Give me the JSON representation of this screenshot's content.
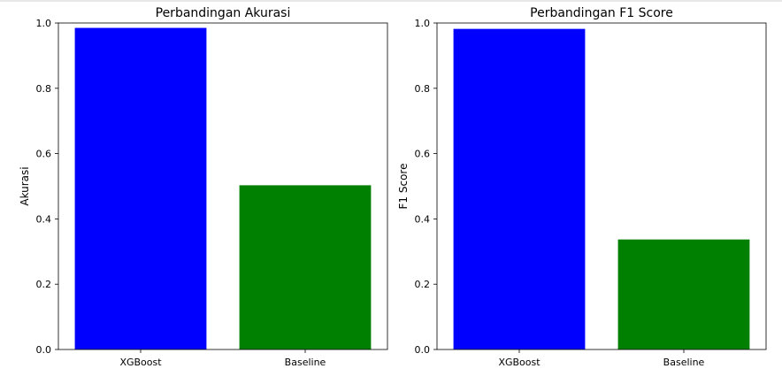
{
  "chart_data": [
    {
      "type": "bar",
      "title": "Perbandingan Akurasi",
      "xlabel": "",
      "ylabel": "Akurasi",
      "categories": [
        "XGBoost",
        "Baseline"
      ],
      "values": [
        0.985,
        0.503
      ],
      "colors": [
        "#0000ff",
        "#008000"
      ],
      "ylim": [
        0,
        1.0
      ],
      "yticks": [
        "0.0",
        "0.2",
        "0.4",
        "0.6",
        "0.8",
        "1.0"
      ],
      "grid": false
    },
    {
      "type": "bar",
      "title": "Perbandingan F1 Score",
      "xlabel": "",
      "ylabel": "F1 Score",
      "categories": [
        "XGBoost",
        "Baseline"
      ],
      "values": [
        0.982,
        0.337
      ],
      "colors": [
        "#0000ff",
        "#008000"
      ],
      "ylim": [
        0,
        1.0
      ],
      "yticks": [
        "0.0",
        "0.2",
        "0.4",
        "0.6",
        "0.8",
        "1.0"
      ],
      "grid": false
    }
  ]
}
